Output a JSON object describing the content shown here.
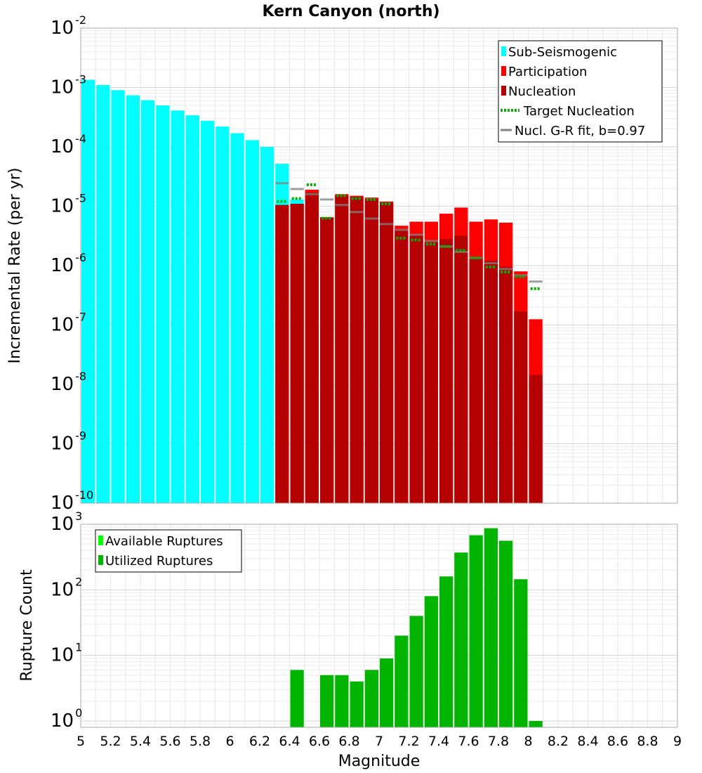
{
  "chart_data": [
    {
      "type": "bar",
      "title": "Kern Canyon (north)",
      "ylabel": "Incremental Rate (per yr)",
      "yscale": "log",
      "ylim": [
        1e-10,
        0.01
      ],
      "xlim": [
        5,
        9
      ],
      "bin_width": 0.1,
      "y_tick_exponents": [
        -2,
        -3,
        -4,
        -5,
        -6,
        -7,
        -8,
        -9,
        -10
      ],
      "grid": true,
      "legend_position": "top-right",
      "legend": [
        {
          "label": "Sub-Seismogenic",
          "color": "#00ffff",
          "kind": "box"
        },
        {
          "label": "Participation",
          "color": "#ff0000",
          "kind": "box"
        },
        {
          "label": "Nucleation",
          "color": "#b40000",
          "kind": "box"
        },
        {
          "label": "Target Nucleation",
          "color": "#00b400",
          "kind": "dotted"
        },
        {
          "label": "Nucl. G-R fit, b=0.97",
          "color": "#808080",
          "kind": "line"
        }
      ],
      "series": [
        {
          "name": "Sub-Seismogenic",
          "x": [
            5.05,
            5.15,
            5.25,
            5.35,
            5.45,
            5.55,
            5.65,
            5.75,
            5.85,
            5.95,
            6.05,
            6.15,
            6.25,
            6.35,
            6.45
          ],
          "values": [
            0.00135,
            0.0011,
            0.0009,
            0.00074,
            0.00061,
            0.0005,
            0.00041,
            0.00034,
            0.000275,
            0.00022,
            0.00017,
            0.00013,
            0.0001,
            5.2e-05,
            1.3e-05
          ]
        },
        {
          "name": "Participation",
          "x": [
            6.35,
            6.45,
            6.55,
            6.65,
            6.75,
            6.85,
            6.95,
            7.05,
            7.15,
            7.25,
            7.35,
            7.45,
            7.55,
            7.65,
            7.75,
            7.85,
            7.95,
            8.05
          ],
          "values": [
            1.05e-05,
            1.1e-05,
            1.9e-05,
            6.5e-06,
            1.6e-05,
            1.5e-05,
            1.4e-05,
            1.2e-05,
            4.7e-06,
            5.5e-06,
            5.5e-06,
            7.5e-06,
            9.5e-06,
            5.5e-06,
            6e-06,
            5.3e-06,
            8e-07,
            1.25e-07
          ]
        },
        {
          "name": "Nucleation",
          "x": [
            6.35,
            6.45,
            6.55,
            6.65,
            6.75,
            6.85,
            6.95,
            7.05,
            7.15,
            7.25,
            7.35,
            7.45,
            7.55,
            7.65,
            7.75,
            7.85,
            7.95,
            8.05
          ],
          "values": [
            1.05e-05,
            1.1e-05,
            1.7e-05,
            6.5e-06,
            1.5e-05,
            1.45e-05,
            1.3e-05,
            1.15e-05,
            4e-06,
            3.3e-06,
            2.5e-06,
            2.8e-06,
            3.2e-06,
            1.4e-06,
            1.2e-06,
            9.5e-07,
            1.7e-07,
            1.45e-08
          ]
        },
        {
          "name": "Target Nucleation",
          "x": [
            6.35,
            6.45,
            6.55,
            6.65,
            6.75,
            6.85,
            6.95,
            7.05,
            7.15,
            7.25,
            7.35,
            7.45,
            7.55,
            7.65,
            7.75,
            7.85,
            7.95,
            8.05
          ],
          "values": [
            1.2e-05,
            1.35e-05,
            2.3e-05,
            6.3e-06,
            1.5e-05,
            1.35e-05,
            1.3e-05,
            1.1e-05,
            2.9e-06,
            2.7e-06,
            2.3e-06,
            2.1e-06,
            1.8e-06,
            1.35e-06,
            9.5e-07,
            7.8e-07,
            6.5e-07,
            4.1e-07
          ]
        },
        {
          "name": "Nucl. G-R fit, b=0.97",
          "x": [
            6.35,
            6.45,
            6.55,
            6.65,
            6.75,
            6.85,
            6.95,
            7.05,
            7.15,
            7.25,
            7.35,
            7.45,
            7.55,
            7.65,
            7.75,
            7.85,
            7.95,
            8.05
          ],
          "values": [
            2.45e-05,
            1.95e-05,
            1.6e-05,
            1.3e-05,
            1.05e-05,
            8e-06,
            6.2e-06,
            5e-06,
            4e-06,
            3.3e-06,
            2.6e-06,
            2.1e-06,
            1.7e-06,
            1.35e-06,
            1.1e-06,
            8.8e-07,
            6.9e-07,
            5.4e-07
          ]
        }
      ]
    },
    {
      "type": "bar",
      "xlabel": "Magnitude",
      "ylabel": "Rupture Count",
      "yscale": "log",
      "ylim": [
        0.8,
        1000
      ],
      "xlim": [
        5,
        9
      ],
      "bin_width": 0.1,
      "y_tick_exponents": [
        3,
        2,
        1,
        0
      ],
      "x_ticks": [
        "5",
        "5.2",
        "5.4",
        "5.6",
        "5.8",
        "6",
        "6.2",
        "6.4",
        "6.6",
        "6.8",
        "7",
        "7.2",
        "7.4",
        "7.6",
        "7.8",
        "8",
        "8.2",
        "8.4",
        "8.6",
        "8.8",
        "9"
      ],
      "grid": true,
      "legend_position": "top-left",
      "legend": [
        {
          "label": "Available Ruptures",
          "color": "#00ff00",
          "kind": "box"
        },
        {
          "label": "Utilized Ruptures",
          "color": "#00b400",
          "kind": "box"
        }
      ],
      "series": [
        {
          "name": "Utilized Ruptures",
          "x": [
            6.45,
            6.65,
            6.75,
            6.85,
            6.95,
            7.05,
            7.15,
            7.25,
            7.35,
            7.45,
            7.55,
            7.65,
            7.75,
            7.85,
            7.95,
            8.05
          ],
          "values": [
            6,
            5,
            5,
            4,
            6,
            9,
            20,
            40,
            80,
            160,
            370,
            680,
            870,
            560,
            145,
            1
          ]
        }
      ]
    }
  ]
}
